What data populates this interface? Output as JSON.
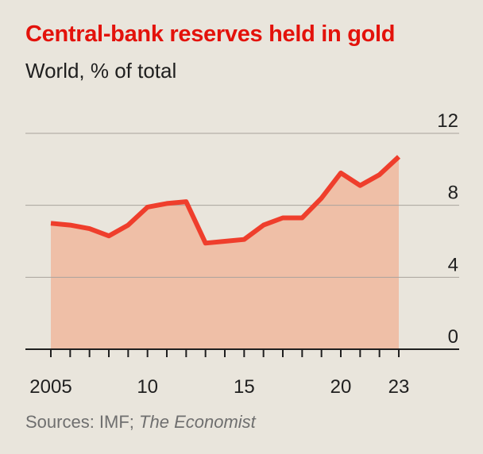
{
  "header": {
    "title": "Central-bank reserves held in gold",
    "subtitle": "World, % of total"
  },
  "footer": {
    "source_prefix": "Sources: IMF; ",
    "source_italic": "The Economist"
  },
  "colors": {
    "background": "#e9e5dc",
    "title": "#e3120b",
    "line": "#ef3e2c",
    "area": "#efbfa7",
    "grid": "#a9a39c",
    "axis": "#1f1f1f"
  },
  "chart_data": {
    "type": "area",
    "title": "Central-bank reserves held in gold",
    "subtitle": "World, % of total",
    "xlabel": "",
    "ylabel": "",
    "x": [
      2005,
      2006,
      2007,
      2008,
      2009,
      2010,
      2011,
      2012,
      2013,
      2014,
      2015,
      2016,
      2017,
      2018,
      2019,
      2020,
      2021,
      2022,
      2023
    ],
    "series": [
      {
        "values": [
          7.0,
          6.9,
          6.7,
          6.3,
          6.9,
          7.9,
          8.1,
          8.2,
          5.9,
          6.0,
          6.1,
          6.9,
          7.3,
          7.3,
          8.4,
          9.8,
          9.1,
          9.7,
          10.7
        ]
      }
    ],
    "ylim": [
      0,
      12
    ],
    "yticks": [
      "0",
      "4",
      "8",
      "12"
    ],
    "xtick_labels": [
      {
        "year": 2005,
        "label": "2005"
      },
      {
        "year": 2010,
        "label": "10"
      },
      {
        "year": 2015,
        "label": "15"
      },
      {
        "year": 2020,
        "label": "20"
      },
      {
        "year": 2023,
        "label": "23"
      }
    ],
    "grid": true,
    "y_axis_position": "right"
  }
}
